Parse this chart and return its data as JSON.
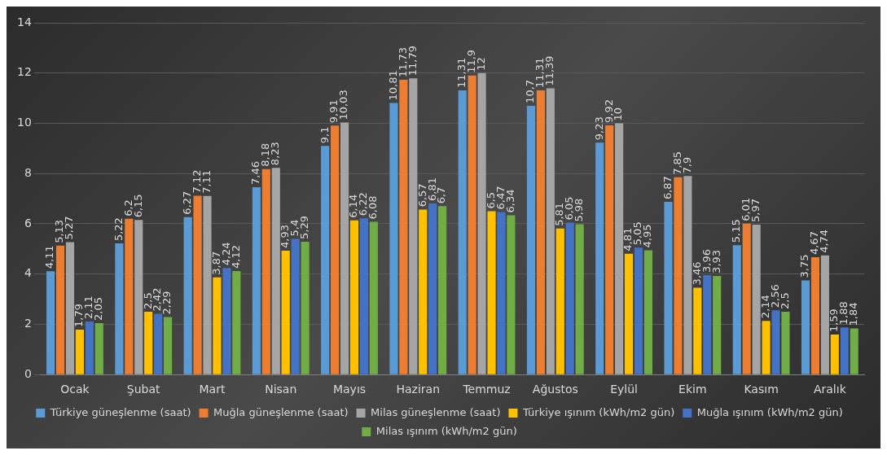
{
  "chart_data": {
    "type": "bar",
    "categories": [
      "Ocak",
      "Şubat",
      "Mart",
      "Nisan",
      "Mayıs",
      "Haziran",
      "Temmuz",
      "Ağustos",
      "Eylül",
      "Ekim",
      "Kasım",
      "Aralık"
    ],
    "series": [
      {
        "name": "Türkiye güneşlenme (saat)",
        "color": "#5b9bd5",
        "values": [
          4.11,
          5.22,
          6.27,
          7.46,
          9.1,
          10.81,
          11.31,
          10.7,
          9.23,
          6.87,
          5.15,
          3.75
        ],
        "value_labels": [
          "4,11",
          "5,22",
          "6,27",
          "7,46",
          "9,1",
          "10,81",
          "11,31",
          "10,7",
          "9,23",
          "6,87",
          "5,15",
          "3,75"
        ]
      },
      {
        "name": "Muğla güneşlenme (saat)",
        "color": "#ed7d31",
        "values": [
          5.13,
          6.2,
          7.12,
          8.18,
          9.91,
          11.73,
          11.9,
          11.31,
          9.92,
          7.85,
          6.01,
          4.67
        ],
        "value_labels": [
          "5,13",
          "6,2",
          "7,12",
          "8,18",
          "9,91",
          "11,73",
          "11,9",
          "11,31",
          "9,92",
          "7,85",
          "6,01",
          "4,67"
        ]
      },
      {
        "name": "Milas güneşlenme (saat)",
        "color": "#a5a5a5",
        "values": [
          5.27,
          6.15,
          7.11,
          8.23,
          10.03,
          11.79,
          12,
          11.39,
          10,
          7.9,
          5.97,
          4.74
        ],
        "value_labels": [
          "5,27",
          "6,15",
          "7,11",
          "8,23",
          "10,03",
          "11,79",
          "12",
          "11,39",
          "10",
          "7,9",
          "5,97",
          "4,74"
        ]
      },
      {
        "name": "Türkiye ışınım (kWh/m2 gün)",
        "color": "#ffc000",
        "values": [
          1.79,
          2.5,
          3.87,
          4.93,
          6.14,
          6.57,
          6.5,
          5.81,
          4.81,
          3.46,
          2.14,
          1.59
        ],
        "value_labels": [
          "1,79",
          "2,5",
          "3,87",
          "4,93",
          "6,14",
          "6,57",
          "6,5",
          "5,81",
          "4,81",
          "3,46",
          "2,14",
          "1,59"
        ]
      },
      {
        "name": "Muğla ışınım (kWh/m2 gün)",
        "color": "#4472c4",
        "values": [
          2.11,
          2.42,
          4.24,
          5.4,
          6.22,
          6.81,
          6.47,
          6.05,
          5.05,
          3.96,
          2.56,
          1.88
        ],
        "value_labels": [
          "2,11",
          "2,42",
          "4,24",
          "5,4",
          "6,22",
          "6,81",
          "6,47",
          "6,05",
          "5,05",
          "3,96",
          "2,56",
          "1,88"
        ]
      },
      {
        "name": "Milas ışınım (kWh/m2 gün)",
        "color": "#70ad47",
        "values": [
          2.05,
          2.29,
          4.12,
          5.29,
          6.08,
          6.7,
          6.34,
          5.98,
          4.95,
          3.93,
          2.5,
          1.84
        ],
        "value_labels": [
          "2,05",
          "2,29",
          "4,12",
          "5,29",
          "6,08",
          "6,7",
          "6,34",
          "5,98",
          "4,95",
          "3,93",
          "2,5",
          "1,84"
        ]
      }
    ],
    "ylim": [
      0,
      14
    ],
    "yticks": [
      0,
      2,
      4,
      6,
      8,
      10,
      12,
      14
    ],
    "grid": "y",
    "legend": "bottom"
  }
}
